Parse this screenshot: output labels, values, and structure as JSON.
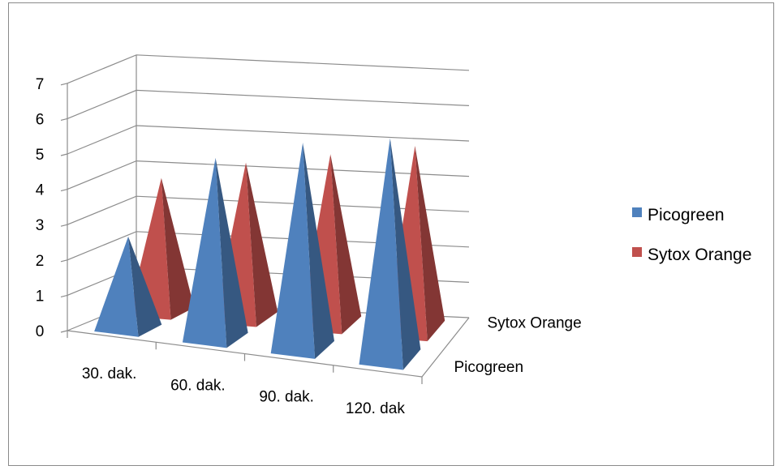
{
  "chart_data": {
    "type": "bar",
    "variant": "3d-pyramid",
    "title": "",
    "xlabel": "",
    "ylabel": "",
    "ylim": [
      0,
      7
    ],
    "yticks": [
      "0",
      "1",
      "2",
      "3",
      "4",
      "5",
      "6",
      "7"
    ],
    "categories": [
      "30. dak.",
      "60. dak.",
      "90. dak.",
      "120. dak"
    ],
    "depth_labels": [
      "Picogreen",
      "Sytox Orange"
    ],
    "grid": true,
    "legend_position": "right",
    "series": [
      {
        "name": "Picogreen",
        "color": "#4f81bd",
        "values": [
          2.6,
          5.1,
          5.8,
          6.2
        ]
      },
      {
        "name": "Sytox Orange",
        "color": "#c0504d",
        "values": [
          3.8,
          4.4,
          4.8,
          5.2
        ]
      }
    ]
  }
}
